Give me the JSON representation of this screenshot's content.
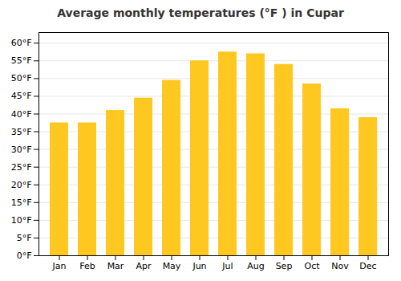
{
  "chart_data": {
    "type": "bar",
    "title": "Average monthly temperatures (°F ) in Cupar",
    "categories": [
      "Jan",
      "Feb",
      "Mar",
      "Apr",
      "May",
      "Jun",
      "Jul",
      "Aug",
      "Sep",
      "Oct",
      "Nov",
      "Dec"
    ],
    "values": [
      37.5,
      37.5,
      41.0,
      44.5,
      49.5,
      55.0,
      57.5,
      57.0,
      54.0,
      48.5,
      41.5,
      39.0
    ],
    "color": "#FFC820",
    "ylim": [
      0,
      63
    ],
    "yticks": [
      {
        "value": 0,
        "label": "0°F"
      },
      {
        "value": 5,
        "label": "5°F"
      },
      {
        "value": 10,
        "label": "10°F"
      },
      {
        "value": 15,
        "label": "15°F"
      },
      {
        "value": 20,
        "label": "20°F"
      },
      {
        "value": 25,
        "label": "25°F"
      },
      {
        "value": 30,
        "label": "30°F"
      },
      {
        "value": 35,
        "label": "35°F"
      },
      {
        "value": 40,
        "label": "40°F"
      },
      {
        "value": 45,
        "label": "45°F"
      },
      {
        "value": 50,
        "label": "50°F"
      },
      {
        "value": 55,
        "label": "55°F"
      },
      {
        "value": 60,
        "label": "60°F"
      }
    ],
    "grid": true
  }
}
